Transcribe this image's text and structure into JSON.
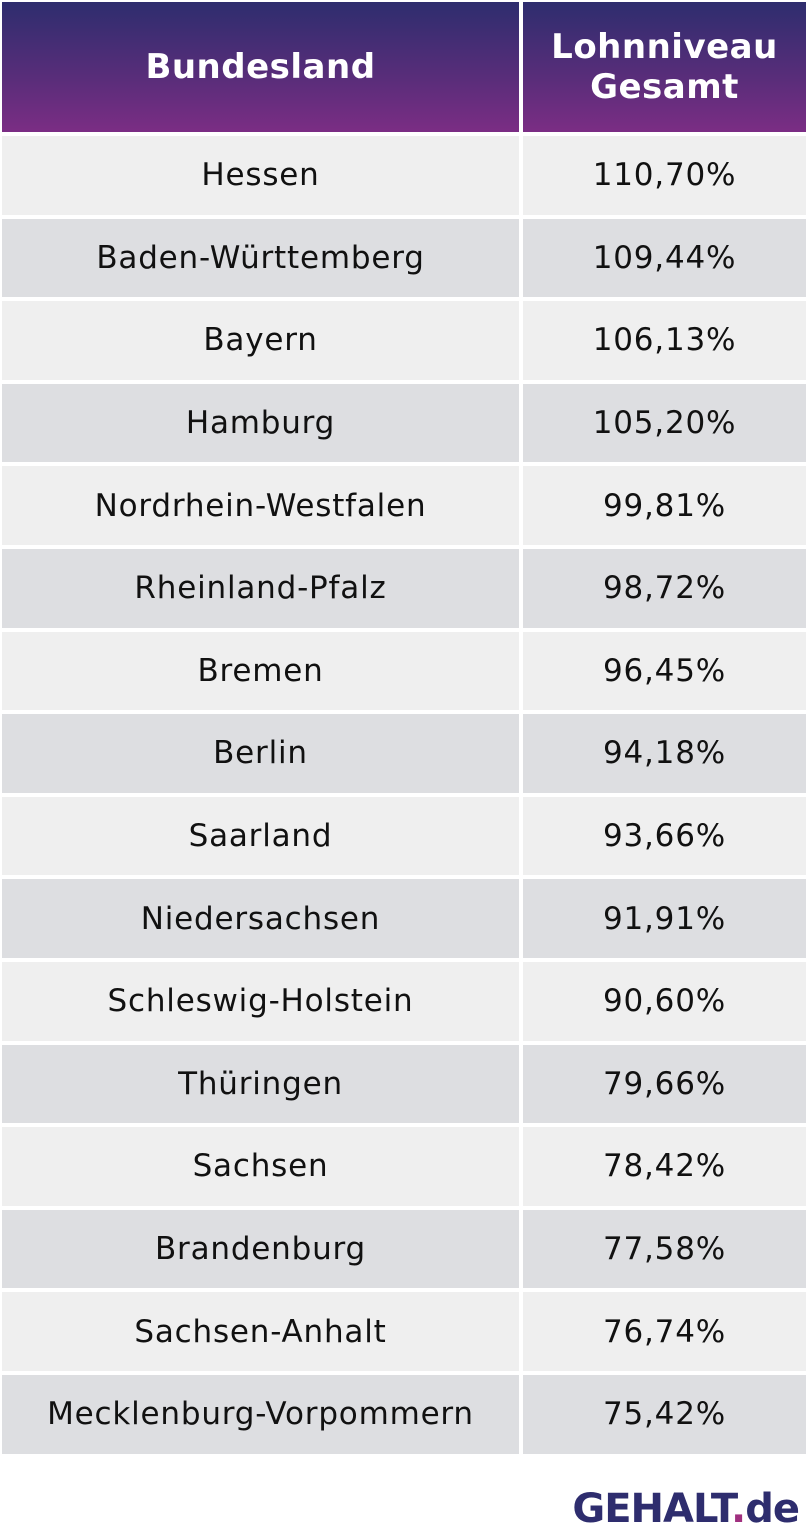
{
  "table": {
    "header": {
      "col1": "Bundesland",
      "col2_line1": "Lohnniveau",
      "col2_line2": "Gesamt"
    }
  },
  "chart_data": {
    "type": "table",
    "columns": [
      "Bundesland",
      "Lohnniveau Gesamt"
    ],
    "rows": [
      {
        "state": "Hessen",
        "value": "110,70%"
      },
      {
        "state": "Baden-Württemberg",
        "value": "109,44%"
      },
      {
        "state": "Bayern",
        "value": "106,13%"
      },
      {
        "state": "Hamburg",
        "value": "105,20%"
      },
      {
        "state": "Nordrhein-Westfalen",
        "value": "99,81%"
      },
      {
        "state": "Rheinland-Pfalz",
        "value": "98,72%"
      },
      {
        "state": "Bremen",
        "value": "96,45%"
      },
      {
        "state": "Berlin",
        "value": "94,18%"
      },
      {
        "state": "Saarland",
        "value": "93,66%"
      },
      {
        "state": "Niedersachsen",
        "value": "91,91%"
      },
      {
        "state": "Schleswig-Holstein",
        "value": "90,60%"
      },
      {
        "state": "Thüringen",
        "value": "79,66%"
      },
      {
        "state": "Sachsen",
        "value": "78,42%"
      },
      {
        "state": "Brandenburg",
        "value": "77,58%"
      },
      {
        "state": "Sachsen-Anhalt",
        "value": "76,74%"
      },
      {
        "state": "Mecklenburg-Vorpommern",
        "value": "75,42%"
      }
    ]
  },
  "logo": {
    "brand": "GEHALT",
    "dot": ".",
    "tld": "de"
  },
  "colors": {
    "header_top": "#2e2d6e",
    "header_bottom": "#7b2d84",
    "row_light": "#efefef",
    "row_dark": "#dddee1",
    "logo_main": "#2e2d6e",
    "logo_dot": "#a0307f"
  }
}
